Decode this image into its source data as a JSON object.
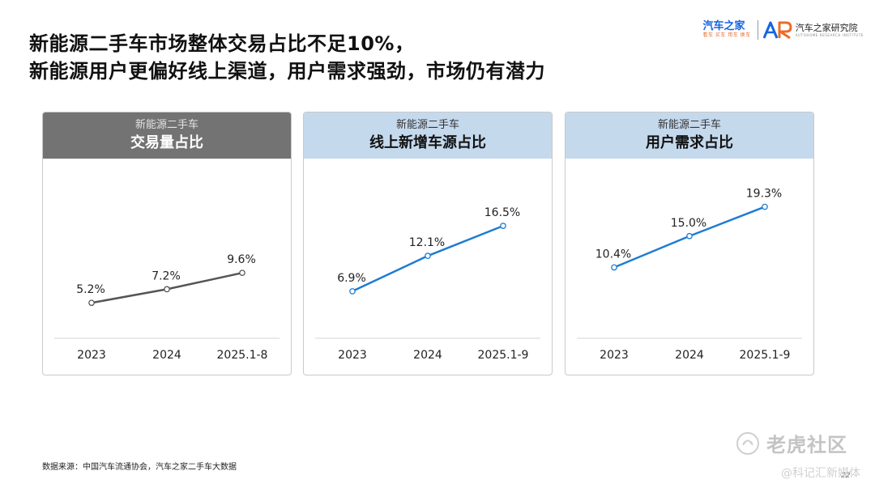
{
  "header": {
    "title_line1": "新能源二手车市场整体交易占比不足10%，",
    "title_line2": "新能源用户更偏好线上渠道，用户需求强劲，市场仍有潜力"
  },
  "brand": {
    "name": "汽车之家",
    "tagline": "看车 买车 用车 换车",
    "logo_text": "AR",
    "institute": "汽车之家研究院",
    "institute_en": "AUTOHOME RESEARCH INSTITUTE"
  },
  "panels": [
    {
      "subtitle": "新能源二手车",
      "title": "交易量占比"
    },
    {
      "subtitle": "新能源二手车",
      "title": "线上新增车源占比"
    },
    {
      "subtitle": "新能源二手车",
      "title": "用户需求占比"
    }
  ],
  "chart_data": [
    {
      "type": "line",
      "title": "交易量占比",
      "subtitle": "新能源二手车",
      "categories": [
        "2023",
        "2024",
        "2025.1-8"
      ],
      "values": [
        5.2,
        7.2,
        9.6
      ],
      "labels": [
        "5.2%",
        "7.2%",
        "9.6%"
      ],
      "unit": "%",
      "ylim": [
        0,
        24
      ],
      "color": "#555555"
    },
    {
      "type": "line",
      "title": "线上新增车源占比",
      "subtitle": "新能源二手车",
      "categories": [
        "2023",
        "2024",
        "2025.1-9"
      ],
      "values": [
        6.9,
        12.1,
        16.5
      ],
      "labels": [
        "6.9%",
        "12.1%",
        "16.5%"
      ],
      "unit": "%",
      "ylim": [
        0,
        24
      ],
      "color": "#1f7cd1"
    },
    {
      "type": "line",
      "title": "用户需求占比",
      "subtitle": "新能源二手车",
      "categories": [
        "2023",
        "2024",
        "2025.1-9"
      ],
      "values": [
        10.4,
        15.0,
        19.3
      ],
      "labels": [
        "10.4%",
        "15.0%",
        "19.3%"
      ],
      "unit": "%",
      "ylim": [
        0,
        24
      ],
      "color": "#1f7cd1"
    }
  ],
  "footer": {
    "source": "数据来源：中国汽车流通协会，汽车之家二手车大数据",
    "page_number": "22"
  },
  "watermark": {
    "text": "老虎社区",
    "credit": "@科记汇新媒体"
  }
}
